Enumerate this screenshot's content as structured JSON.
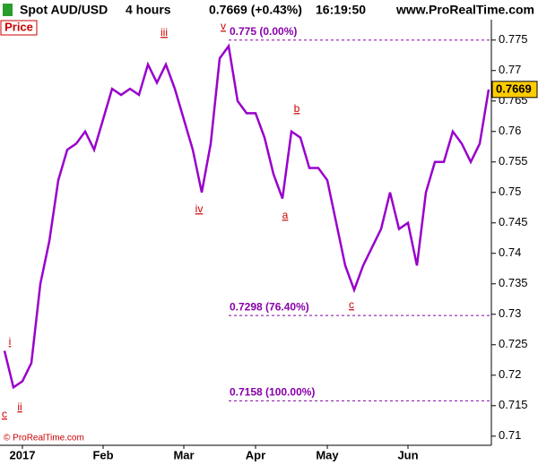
{
  "chart_data": {
    "type": "line",
    "title": "Spot AUD/USD",
    "interval": "4 hours",
    "quote": "0.7669 (+0.43%)",
    "time": "16:19:50",
    "site": "www.ProRealTime.com",
    "panel_label": "Price",
    "copyright": "© ProRealTime.com",
    "categories": [
      null,
      null,
      "2017",
      null,
      null,
      null,
      null,
      null,
      null,
      null,
      null,
      "Feb",
      null,
      null,
      null,
      null,
      null,
      null,
      null,
      null,
      "Mar",
      null,
      null,
      null,
      null,
      null,
      null,
      null,
      "Apr",
      null,
      null,
      null,
      null,
      null,
      null,
      null,
      "May",
      null,
      null,
      null,
      null,
      null,
      null,
      null,
      null,
      "Jun",
      null,
      null,
      null,
      null,
      null,
      null,
      null,
      null,
      null
    ],
    "series": [
      {
        "name": "Price",
        "color": "#9900cc",
        "values": [
          0.724,
          0.718,
          0.719,
          0.722,
          0.735,
          0.742,
          0.752,
          0.757,
          0.758,
          0.76,
          0.757,
          0.762,
          0.767,
          0.766,
          0.767,
          0.766,
          0.771,
          0.768,
          0.771,
          0.767,
          0.762,
          0.757,
          0.75,
          0.758,
          0.772,
          0.774,
          0.765,
          0.763,
          0.763,
          0.759,
          0.753,
          0.749,
          0.76,
          0.759,
          0.754,
          0.754,
          0.752,
          0.745,
          0.738,
          0.734,
          0.738,
          0.741,
          0.744,
          0.75,
          0.744,
          0.745,
          0.738,
          0.75,
          0.755,
          0.755,
          0.76,
          0.758,
          0.755,
          0.758,
          0.7669
        ]
      }
    ],
    "ylim": [
      0.7085,
      0.7779
    ],
    "yticks": [
      0.71,
      0.715,
      0.72,
      0.725,
      0.73,
      0.735,
      0.74,
      0.745,
      0.75,
      0.755,
      0.76,
      0.765,
      0.77,
      0.775
    ],
    "levels": [
      {
        "value": 0.775,
        "label": "0.775 (0.00%)"
      },
      {
        "value": 0.7298,
        "label": "0.7298 (76.40%)"
      },
      {
        "value": 0.7158,
        "label": "0.7158 (100.00%)"
      }
    ],
    "wave_labels": [
      "c",
      "i",
      "ii",
      "iii",
      "iv",
      "v",
      "a",
      "b",
      "c"
    ],
    "grid": false
  }
}
